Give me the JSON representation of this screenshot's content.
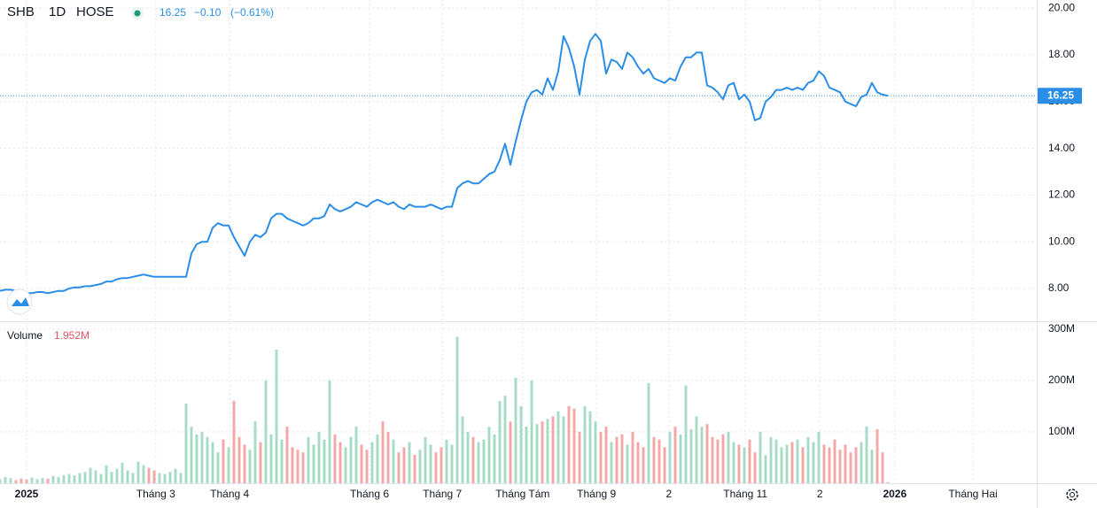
{
  "chart_data": [
    {
      "type": "line",
      "symbol": "SHB",
      "interval": "1D",
      "exchange": "HOSE",
      "header_change": "−0.10",
      "header_change_pct": "(−0.61%)",
      "color": "#2a8ee6",
      "last_price": {
        "value": 16.25,
        "label": "16.25"
      },
      "xlim": [
        0,
        195
      ],
      "ylim": [
        6.6,
        20.35
      ],
      "xticks": [
        {
          "value": 5,
          "label": "2025"
        },
        {
          "value": 29.3,
          "label": "Tháng 3"
        },
        {
          "value": 43.2,
          "label": "Tháng 4"
        },
        {
          "value": 69.5,
          "label": "Tháng 6"
        },
        {
          "value": 83.2,
          "label": "Tháng 7"
        },
        {
          "value": 98.3,
          "label": "Tháng Tám"
        },
        {
          "value": 112.2,
          "label": "Tháng 9"
        },
        {
          "value": 125.8,
          "label": "2"
        },
        {
          "value": 140.2,
          "label": "Tháng 11"
        },
        {
          "value": 154.2,
          "label": "2"
        },
        {
          "value": 168.3,
          "label": "2026"
        },
        {
          "value": 183,
          "label": "Tháng Hai"
        }
      ],
      "yticks": [
        {
          "value": 8,
          "label": "8.00"
        },
        {
          "value": 10,
          "label": "10.00"
        },
        {
          "value": 12,
          "label": "12.00"
        },
        {
          "value": 14,
          "label": "14.00"
        },
        {
          "value": 16,
          "label": "16.00"
        },
        {
          "value": 18,
          "label": "18.00"
        },
        {
          "value": 20,
          "label": "20.00"
        }
      ],
      "grid": true,
      "values": [
        7.9,
        7.95,
        7.95,
        7.9,
        7.85,
        7.8,
        7.8,
        7.85,
        7.85,
        7.8,
        7.85,
        7.9,
        7.9,
        8.0,
        8.05,
        8.05,
        8.1,
        8.1,
        8.15,
        8.2,
        8.3,
        8.3,
        8.4,
        8.45,
        8.45,
        8.5,
        8.55,
        8.6,
        8.55,
        8.5,
        8.5,
        8.5,
        8.5,
        8.5,
        8.5,
        8.5,
        9.5,
        9.9,
        10.0,
        10.0,
        10.6,
        10.8,
        10.7,
        10.7,
        10.2,
        9.8,
        9.4,
        10.0,
        10.3,
        10.2,
        10.4,
        11.0,
        11.2,
        11.2,
        11.0,
        10.9,
        10.8,
        10.7,
        10.8,
        11.0,
        11.0,
        11.1,
        11.6,
        11.4,
        11.3,
        11.4,
        11.5,
        11.7,
        11.6,
        11.5,
        11.7,
        11.8,
        11.7,
        11.6,
        11.7,
        11.5,
        11.4,
        11.6,
        11.5,
        11.5,
        11.5,
        11.6,
        11.5,
        11.4,
        11.5,
        11.5,
        12.3,
        12.5,
        12.6,
        12.5,
        12.5,
        12.7,
        12.9,
        13.0,
        13.5,
        14.2,
        13.3,
        14.3,
        15.2,
        16.0,
        16.4,
        16.5,
        16.3,
        17.0,
        16.5,
        17.3,
        18.8,
        18.3,
        17.5,
        16.3,
        17.8,
        18.6,
        18.9,
        18.6,
        17.2,
        17.8,
        17.7,
        17.4,
        18.1,
        17.9,
        17.5,
        17.2,
        17.4,
        17.0,
        16.9,
        16.8,
        17.0,
        16.9,
        17.5,
        17.9,
        17.9,
        18.1,
        18.1,
        16.7,
        16.6,
        16.4,
        16.1,
        16.7,
        16.8,
        16.1,
        16.3,
        16.0,
        15.2,
        15.3,
        16.0,
        16.2,
        16.5,
        16.5,
        16.6,
        16.5,
        16.6,
        16.5,
        16.8,
        16.9,
        17.3,
        17.1,
        16.6,
        16.5,
        16.4,
        16.0,
        15.9,
        15.8,
        16.2,
        16.3,
        16.8,
        16.4,
        16.3,
        16.25
      ]
    },
    {
      "type": "bar",
      "title": "Volume",
      "last_label": "1.952M",
      "up_color": "#a8dcc8",
      "down_color": "#f4a9a9",
      "xlim": [
        0,
        195
      ],
      "ylim": [
        0,
        315
      ],
      "yticks": [
        {
          "value": 100,
          "label": "100M"
        },
        {
          "value": 200,
          "label": "200M"
        },
        {
          "value": 300,
          "label": "300M"
        }
      ],
      "values": [
        8,
        12,
        10,
        6,
        9,
        7,
        11,
        8,
        10,
        9,
        14,
        12,
        16,
        18,
        15,
        20,
        22,
        30,
        25,
        18,
        35,
        22,
        28,
        40,
        25,
        20,
        42,
        35,
        30,
        25,
        20,
        18,
        22,
        28,
        20,
        155,
        110,
        95,
        100,
        90,
        80,
        60,
        85,
        70,
        160,
        90,
        75,
        65,
        120,
        80,
        200,
        95,
        260,
        85,
        110,
        70,
        65,
        60,
        90,
        75,
        100,
        85,
        200,
        95,
        80,
        70,
        90,
        110,
        75,
        65,
        80,
        95,
        120,
        100,
        85,
        60,
        70,
        80,
        55,
        65,
        90,
        75,
        60,
        70,
        85,
        75,
        285,
        130,
        100,
        90,
        80,
        85,
        110,
        95,
        160,
        170,
        120,
        205,
        150,
        110,
        200,
        115,
        120,
        125,
        130,
        140,
        130,
        150,
        145,
        100,
        150,
        140,
        120,
        100,
        110,
        80,
        90,
        95,
        75,
        100,
        80,
        70,
        195,
        90,
        85,
        70,
        100,
        110,
        95,
        190,
        105,
        130,
        110,
        115,
        90,
        85,
        95,
        100,
        80,
        75,
        70,
        85,
        60,
        100,
        55,
        90,
        85,
        70,
        75,
        80,
        85,
        70,
        90,
        80,
        100,
        75,
        70,
        85,
        65,
        75,
        60,
        70,
        80,
        110,
        65,
        105,
        60,
        2
      ]
    }
  ]
}
